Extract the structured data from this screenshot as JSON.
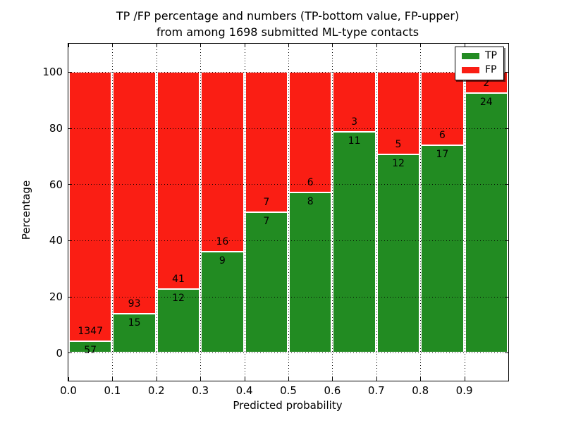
{
  "figure": {
    "title_line1": "TP /FP percentage and numbers (TP-bottom value, FP-upper)",
    "title_line2": "from among 1698 submitted ML-type contacts"
  },
  "chart_data": {
    "type": "bar",
    "subtype": "stacked-percentage",
    "title": "TP /FP percentage and numbers (TP-bottom value, FP-upper) from among 1698 submitted ML-type contacts",
    "xlabel": "Predicted probability",
    "ylabel": "Percentage",
    "xlim": [
      0.0,
      1.0
    ],
    "ylim": [
      -10,
      110
    ],
    "grid": "dotted",
    "total_contacts": 1698,
    "categories": [
      "0.0-0.1",
      "0.1-0.2",
      "0.2-0.3",
      "0.3-0.4",
      "0.4-0.5",
      "0.5-0.6",
      "0.6-0.7",
      "0.7-0.8",
      "0.8-0.9",
      "0.9-1.0"
    ],
    "x_ticks": [
      0.0,
      0.1,
      0.2,
      0.3,
      0.4,
      0.5,
      0.6,
      0.7,
      0.8,
      0.9
    ],
    "x_tick_labels": [
      "0.0",
      "0.1",
      "0.2",
      "0.3",
      "0.4",
      "0.5",
      "0.6",
      "0.7",
      "0.8",
      "0.9"
    ],
    "y_ticks": [
      0,
      20,
      40,
      60,
      80,
      100
    ],
    "y_tick_labels": [
      "0",
      "20",
      "40",
      "60",
      "80",
      "100"
    ],
    "series": [
      {
        "name": "TP",
        "color": "#228b22",
        "values": [
          57,
          15,
          12,
          9,
          7,
          8,
          11,
          12,
          17,
          24
        ]
      },
      {
        "name": "FP",
        "color": "#fa1e14",
        "values": [
          1347,
          93,
          41,
          16,
          7,
          6,
          3,
          5,
          6,
          2
        ]
      }
    ],
    "tp_percent": [
      4.06,
      13.89,
      22.64,
      36.0,
      50.0,
      57.14,
      78.57,
      70.59,
      73.91,
      92.31
    ],
    "legend": {
      "position": "upper right",
      "entries": [
        {
          "label": "TP",
          "color": "#228b22"
        },
        {
          "label": "FP",
          "color": "#fa1e14"
        }
      ]
    }
  }
}
